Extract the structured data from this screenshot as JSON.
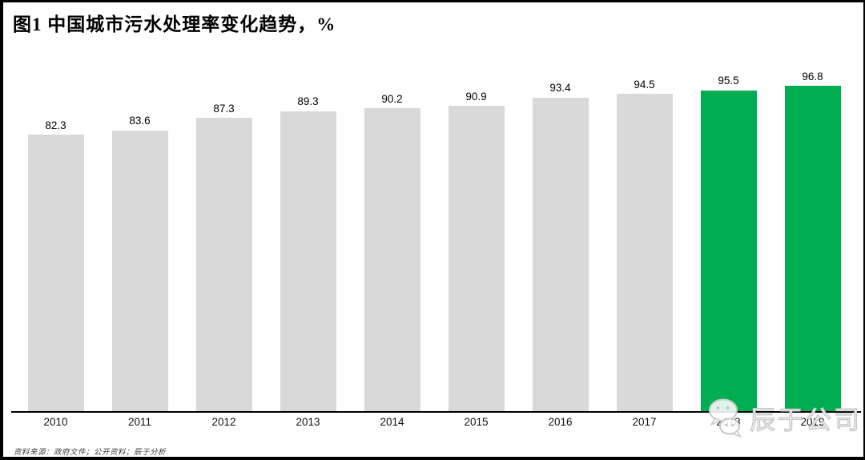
{
  "title": "图1 中国城市污水处理率变化趋势，%",
  "source_note": "资料来源：政府文件；公开资料；辰于分析",
  "watermark": {
    "icon": "wechat-icon",
    "label": "辰于公司"
  },
  "chart_data": {
    "type": "bar",
    "title": "图1 中国城市污水处理率变化趋势，%",
    "unit": "%",
    "categories": [
      "2010",
      "2011",
      "2012",
      "2013",
      "2014",
      "2015",
      "2016",
      "2017",
      "2018",
      "2019"
    ],
    "values": [
      82.3,
      83.6,
      87.3,
      89.3,
      90.2,
      90.9,
      93.4,
      94.5,
      95.5,
      96.8
    ],
    "data_labels": true,
    "grid": false,
    "legend": "none",
    "ylim": [
      0,
      100
    ],
    "highlight_indices": [
      8,
      9
    ],
    "colors": {
      "default_bar": "#D9D9D9",
      "highlight_bar": "#00AE51",
      "axis": "#000000",
      "label_text": "#000000"
    }
  }
}
